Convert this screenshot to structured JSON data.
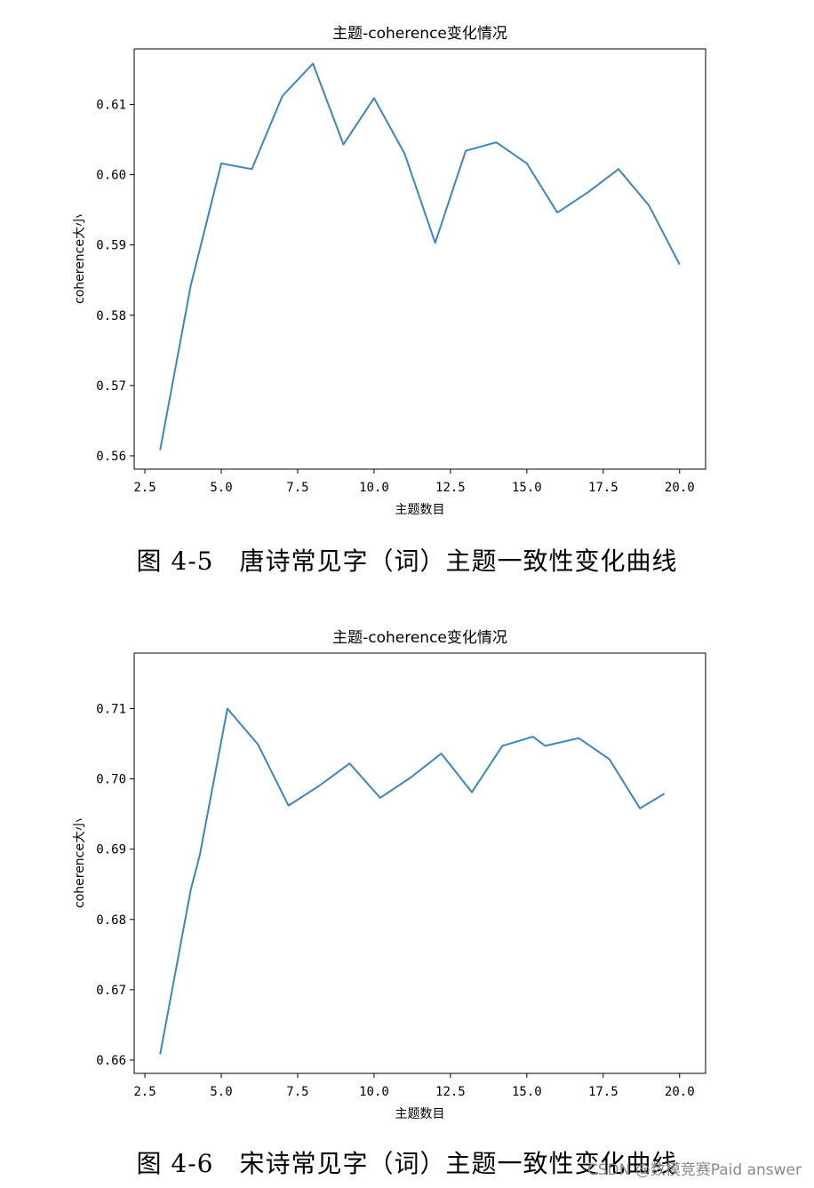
{
  "chart_data": [
    {
      "type": "line",
      "title": "主题-coherence变化情况",
      "xlabel": "主题数目",
      "ylabel": "coherence大小",
      "xlim": [
        2.15,
        20.85
      ],
      "ylim": [
        0.5581,
        0.6179
      ],
      "x_ticks": [
        2.5,
        5.0,
        7.5,
        10.0,
        12.5,
        15.0,
        17.5,
        20.0
      ],
      "x_tick_labels": [
        "2.5",
        "5.0",
        "7.5",
        "10.0",
        "12.5",
        "15.0",
        "17.5",
        "20.0"
      ],
      "y_ticks": [
        0.56,
        0.57,
        0.58,
        0.59,
        0.6,
        0.61
      ],
      "y_tick_labels": [
        "0.56",
        "0.57",
        "0.58",
        "0.59",
        "0.60",
        "0.61"
      ],
      "grid": false,
      "color": "#3a87bd",
      "series": [
        {
          "x": [
            3,
            4,
            5,
            6,
            7,
            8,
            9,
            10,
            11,
            12,
            13,
            14,
            15,
            16,
            17,
            18,
            19,
            20
          ],
          "values": [
            0.5608,
            0.5842,
            0.6016,
            0.6008,
            0.6112,
            0.6158,
            0.6043,
            0.6109,
            0.603,
            0.5903,
            0.6034,
            0.6046,
            0.6016,
            0.5946,
            0.5975,
            0.6008,
            0.5956,
            0.5872
          ]
        }
      ]
    },
    {
      "type": "line",
      "title": "主题-coherence变化情况",
      "xlabel": "主题数目",
      "ylabel": "coherence大小",
      "xlim": [
        2.15,
        20.85
      ],
      "ylim": [
        0.6581,
        0.7179
      ],
      "x_ticks": [
        2.5,
        5.0,
        7.5,
        10.0,
        12.5,
        15.0,
        17.5,
        20.0
      ],
      "x_tick_labels": [
        "2.5",
        "5.0",
        "7.5",
        "10.0",
        "12.5",
        "15.0",
        "17.5",
        "20.0"
      ],
      "y_ticks": [
        0.66,
        0.67,
        0.68,
        0.69,
        0.7,
        0.71
      ],
      "y_tick_labels": [
        "0.66",
        "0.67",
        "0.68",
        "0.69",
        "0.70",
        "0.71"
      ],
      "grid": false,
      "color": "#3a87bd",
      "series": [
        {
          "x": [
            3,
            4,
            4.3,
            5.2,
            6.2,
            7.2,
            8.2,
            9.2,
            10.2,
            11.2,
            12.2,
            13.2,
            14.2,
            15.2,
            15.6,
            16.7,
            17.7,
            18.7,
            19.5
          ],
          "values": [
            0.6608,
            0.6842,
            0.6892,
            0.71,
            0.7049,
            0.6962,
            0.699,
            0.7022,
            0.6973,
            0.7002,
            0.7036,
            0.6981,
            0.7047,
            0.706,
            0.7047,
            0.7058,
            0.7028,
            0.6958,
            0.6979
          ]
        }
      ]
    }
  ],
  "captions": [
    "图 4-5　唐诗常见字（词）主题一致性变化曲线",
    "图 4-6　宋诗常见字（词）主题一致性变化曲线"
  ],
  "watermark": "CSDN @数模竞赛Paid answer"
}
